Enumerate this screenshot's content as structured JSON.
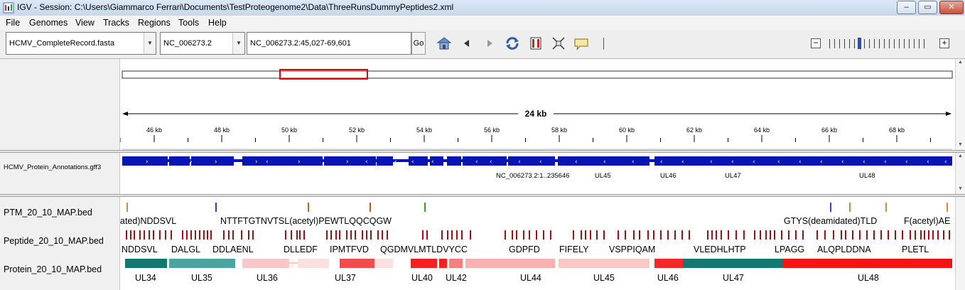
{
  "window": {
    "title": "IGV - Session: C:\\Users\\Giammarco Ferrari\\Documents\\TestProteogenome2\\Data\\ThreeRunsDummyPeptides2.xml",
    "minimize": "–",
    "maximize": "▭",
    "close": "✕"
  },
  "menu": [
    "File",
    "Genomes",
    "View",
    "Tracks",
    "Regions",
    "Tools",
    "Help"
  ],
  "toolbar": {
    "genome": "HCMV_CompleteRecord.fasta",
    "chromosome": "NC_006273.2",
    "locus": "NC_006273.2:45,027-69,601",
    "go_label": "Go",
    "icons": [
      "home-icon",
      "back-icon",
      "forward-icon",
      "refresh-icon",
      "roi-icon",
      "resize-icon",
      "popup-info-icon"
    ],
    "zoom_level_index": 6,
    "zoom_levels": 10
  },
  "ruler": {
    "span_label": "24 kb",
    "ticks": [
      "46 kb",
      "48 kb",
      "50 kb",
      "52 kb",
      "54 kb",
      "56 kb",
      "58 kb",
      "60 kb",
      "62 kb",
      "64 kb",
      "66 kb",
      "68 kb"
    ]
  },
  "annotation_track": {
    "name": "HCMV_Protein_Annotations.gff3",
    "color": "#0a14b4",
    "labels": [
      "NC_006273.2:1..235646",
      "UL45",
      "UL46",
      "UL47",
      "UL48"
    ]
  },
  "tracks": {
    "ptm": {
      "name": "PTM_20_10_MAP.bed",
      "labels": [
        "ated)NDDSVL",
        "NTTFTGTNVTSL(acetyl)PEWTLQQCQGW",
        "GTYS(deamidated)TLD",
        "F(acetyl)AE"
      ]
    },
    "peptide": {
      "name": "Peptide_20_10_MAP.bed",
      "color": "#a01010",
      "labels": [
        "NDDSVL",
        "DALGL",
        "DDLAENL",
        "DLLEDF",
        "IPMTFVD",
        "QGDMVLMTLDVYCC",
        "GDPFD",
        "FIFELY",
        "VSPPIQAM",
        "VLEDHLHTP",
        "LPAGG",
        "ALQPLDDNA",
        "PLETL"
      ]
    },
    "protein": {
      "name": "Protein_20_10_MAP.bed",
      "labels": [
        "UL34",
        "UL35",
        "UL36",
        "UL37",
        "UL40",
        "UL42",
        "UL44",
        "UL45",
        "UL46",
        "UL47",
        "UL48"
      ]
    }
  }
}
